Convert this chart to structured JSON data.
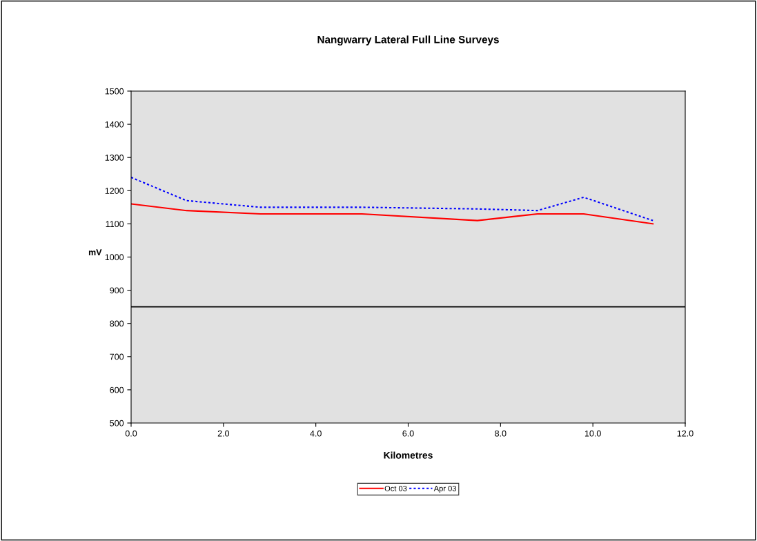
{
  "chart_data": {
    "type": "line",
    "title": "Nangwarry Lateral Full Line Surveys",
    "xlabel": "Kilometres",
    "ylabel": "mV",
    "x": [
      0.0,
      1.2,
      2.8,
      5.0,
      7.5,
      8.8,
      9.8,
      11.3
    ],
    "series": [
      {
        "name": "Oct 03",
        "color": "#ff0000",
        "line_style": "solid",
        "values": [
          1160,
          1140,
          1130,
          1130,
          1110,
          1130,
          1130,
          1100
        ]
      },
      {
        "name": "Apr 03",
        "color": "#0000ff",
        "line_style": "dotted",
        "values": [
          1240,
          1170,
          1150,
          1150,
          1145,
          1140,
          1180,
          1110
        ]
      }
    ],
    "xlim": [
      0,
      12
    ],
    "xticks": [
      {
        "value": 0,
        "label": "0.0"
      },
      {
        "value": 2,
        "label": "2.0"
      },
      {
        "value": 4,
        "label": "4.0"
      },
      {
        "value": 6,
        "label": "6.0"
      },
      {
        "value": 8,
        "label": "8.0"
      },
      {
        "value": 10,
        "label": "10.0"
      },
      {
        "value": 12,
        "label": "12.0"
      }
    ],
    "ylim": [
      500,
      1500
    ],
    "yticks": [
      500,
      600,
      700,
      800,
      900,
      1000,
      1100,
      1200,
      1300,
      1400,
      1500
    ],
    "ref_lines": [
      {
        "axis": "y",
        "value": 850,
        "color": "#000000",
        "line_style": "solid"
      }
    ],
    "grid": false,
    "legend": "bottom",
    "marker": "none"
  }
}
